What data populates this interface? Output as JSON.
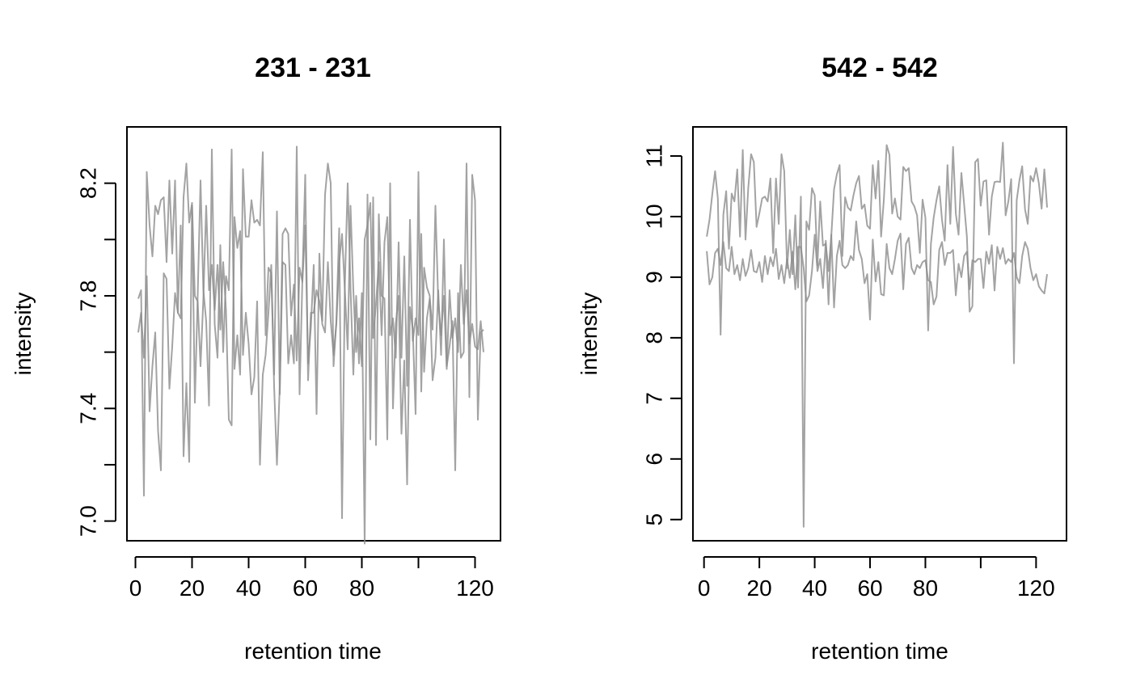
{
  "chart_data": [
    {
      "type": "line",
      "title": "231 - 231",
      "xlabel": "retention time",
      "ylabel": "intensity",
      "xlim": [
        -3,
        129
      ],
      "ylim": [
        6.93,
        8.4
      ],
      "xticks": [
        0,
        20,
        40,
        60,
        80,
        100,
        120
      ],
      "xtick_labels": [
        "0",
        "20",
        "40",
        "60",
        "80",
        "",
        "120"
      ],
      "yticks": [
        7.0,
        7.2,
        7.4,
        7.6,
        7.8,
        8.0,
        8.2
      ],
      "ytick_labels": [
        "7.0",
        "",
        "7.4",
        "",
        "7.8",
        "",
        "8.2"
      ],
      "grid": false,
      "series": [
        {
          "x": [
            1,
            2,
            3,
            4,
            5,
            6,
            7,
            8,
            9,
            10,
            11,
            12,
            13,
            14,
            15,
            16,
            17,
            18,
            19,
            20,
            21,
            22,
            23,
            24,
            25,
            26,
            27,
            28,
            29,
            30,
            31,
            32,
            33,
            34,
            35,
            36,
            37,
            38,
            39,
            40,
            41,
            42,
            43,
            44,
            45,
            46,
            47,
            48,
            49,
            50,
            51,
            52,
            53,
            54,
            55,
            56,
            57,
            58,
            59,
            60,
            61,
            62,
            63,
            64,
            65,
            66,
            67,
            68,
            69,
            70,
            71,
            72,
            73,
            74,
            75,
            76,
            77,
            78,
            79,
            80,
            81,
            82,
            83,
            84,
            85,
            86,
            87,
            88,
            89,
            90,
            91,
            92,
            93,
            94,
            95,
            96,
            97,
            98,
            99,
            100,
            101,
            102,
            103,
            104,
            105,
            106,
            107,
            108,
            109,
            110,
            111,
            112,
            113,
            114,
            115,
            116,
            117,
            118,
            119,
            120,
            121,
            122,
            123
          ],
          "y": [
            7.79,
            7.82,
            7.09,
            8.24,
            8.05,
            7.94,
            8.12,
            8.09,
            8.14,
            8.15,
            7.92,
            8.21,
            7.95,
            8.21,
            7.74,
            8.05,
            7.23,
            7.49,
            7.21,
            8.12,
            7.42,
            7.8,
            8.21,
            7.82,
            7.71,
            7.41,
            8.32,
            7.7,
            7.58,
            7.98,
            7.6,
            7.87,
            7.82,
            8.32,
            7.54,
            7.66,
            7.52,
            8.25,
            8.01,
            8.01,
            8.14,
            8.06,
            8.07,
            8.05,
            8.31,
            7.66,
            7.9,
            7.88,
            7.52,
            8.1,
            7.45,
            7.92,
            7.91,
            7.56,
            7.66,
            7.56,
            8.33,
            7.45,
            7.86,
            8.23,
            7.5,
            7.74,
            7.74,
            7.82,
            7.78,
            7.71,
            8.16,
            8.27,
            8.2,
            7.55,
            7.71,
            8.04,
            7.01,
            7.84,
            8.2,
            7.83,
            7.52,
            7.8,
            7.56,
            7.81,
            6.92,
            8.16,
            7.29,
            8.15,
            7.27,
            8.09,
            7.8,
            7.79,
            7.29,
            8.2,
            7.4,
            7.7,
            7.8,
            7.31,
            7.57,
            7.13,
            7.76,
            7.68,
            7.38,
            8.24,
            7.46,
            7.9,
            7.83,
            7.8,
            7.5,
            7.58,
            7.82,
            7.59,
            8.0,
            7.55,
            7.62,
            7.71,
            7.18,
            7.81,
            7.58,
            7.6,
            8.27,
            7.44,
            8.23,
            8.14,
            7.36,
            7.67,
            7.68
          ]
        },
        {
          "x": [
            1,
            2,
            3,
            4,
            5,
            6,
            7,
            8,
            9,
            10,
            11,
            12,
            13,
            14,
            15,
            16,
            17,
            18,
            19,
            20,
            21,
            22,
            23,
            24,
            25,
            26,
            27,
            28,
            29,
            30,
            31,
            32,
            33,
            34,
            35,
            36,
            37,
            38,
            39,
            40,
            41,
            42,
            43,
            44,
            45,
            46,
            47,
            48,
            49,
            50,
            51,
            52,
            53,
            54,
            55,
            56,
            57,
            58,
            59,
            60,
            61,
            62,
            63,
            64,
            65,
            66,
            67,
            68,
            69,
            70,
            71,
            72,
            73,
            74,
            75,
            76,
            77,
            78,
            79,
            80,
            81,
            82,
            83,
            84,
            85,
            86,
            87,
            88,
            89,
            90,
            91,
            92,
            93,
            94,
            95,
            96,
            97,
            98,
            99,
            100,
            101,
            102,
            103,
            104,
            105,
            106,
            107,
            108,
            109,
            110,
            111,
            112,
            113,
            114,
            115,
            116,
            117,
            118,
            119,
            120,
            121,
            122,
            123
          ],
          "y": [
            7.67,
            7.74,
            7.58,
            7.87,
            7.39,
            7.55,
            7.67,
            7.32,
            7.18,
            7.88,
            7.86,
            7.47,
            7.62,
            7.81,
            7.74,
            7.72,
            8.15,
            8.27,
            8.06,
            8.13,
            7.8,
            7.78,
            7.55,
            7.79,
            8.12,
            7.82,
            7.91,
            7.75,
            7.91,
            7.68,
            7.92,
            7.75,
            7.36,
            7.34,
            8.08,
            7.97,
            8.03,
            7.59,
            7.74,
            7.63,
            7.45,
            7.51,
            7.78,
            7.2,
            7.52,
            7.59,
            7.74,
            7.91,
            7.48,
            7.2,
            7.48,
            8.02,
            8.04,
            8.02,
            7.73,
            7.84,
            7.57,
            7.9,
            7.85,
            8.05,
            7.56,
            7.69,
            7.91,
            7.38,
            7.95,
            7.7,
            7.67,
            7.92,
            7.71,
            7.59,
            7.7,
            7.92,
            8.02,
            7.82,
            7.61,
            8.12,
            7.82,
            7.6,
            7.72,
            7.55,
            8.0,
            8.05,
            8.13,
            7.65,
            7.77,
            7.92,
            7.66,
            7.99,
            8.08,
            7.66,
            7.72,
            7.58,
            7.99,
            7.58,
            7.94,
            7.48,
            8.07,
            7.64,
            7.72,
            7.66,
            8.02,
            7.53,
            7.72,
            7.79,
            7.68,
            8.12,
            7.78,
            7.66,
            7.8,
            7.54,
            7.82,
            7.65,
            7.72,
            7.6,
            7.91,
            7.7,
            7.82,
            7.63,
            7.7,
            7.62,
            7.61,
            7.71,
            7.6
          ]
        }
      ]
    },
    {
      "type": "line",
      "title": "542 - 542",
      "xlabel": "retention time",
      "ylabel": "intensity",
      "xlim": [
        -4,
        131
      ],
      "ylim": [
        4.65,
        11.48
      ],
      "xticks": [
        0,
        20,
        40,
        60,
        80,
        100,
        120
      ],
      "xtick_labels": [
        "0",
        "20",
        "40",
        "60",
        "80",
        "",
        "120"
      ],
      "yticks": [
        5,
        6,
        7,
        8,
        9,
        10,
        11
      ],
      "ytick_labels": [
        "5",
        "6",
        "7",
        "8",
        "9",
        "10",
        "11"
      ],
      "grid": false,
      "series": [
        {
          "x": [
            1,
            2,
            3,
            4,
            5,
            6,
            7,
            8,
            9,
            10,
            11,
            12,
            13,
            14,
            15,
            16,
            17,
            18,
            19,
            20,
            21,
            22,
            23,
            24,
            25,
            26,
            27,
            28,
            29,
            30,
            31,
            32,
            33,
            34,
            35,
            36,
            37,
            38,
            39,
            40,
            41,
            42,
            43,
            44,
            45,
            46,
            47,
            48,
            49,
            50,
            51,
            52,
            53,
            54,
            55,
            56,
            57,
            58,
            59,
            60,
            61,
            62,
            63,
            64,
            65,
            66,
            67,
            68,
            69,
            70,
            71,
            72,
            73,
            74,
            75,
            76,
            77,
            78,
            79,
            80,
            81,
            82,
            83,
            84,
            85,
            86,
            87,
            88,
            89,
            90,
            91,
            92,
            93,
            94,
            95,
            96,
            97,
            98,
            99,
            100,
            101,
            102,
            103,
            104,
            105,
            106,
            107,
            108,
            109,
            110,
            111,
            112,
            113,
            114,
            115,
            116,
            117,
            118,
            119,
            120,
            121,
            122,
            123,
            124
          ],
          "y": [
            9.67,
            9.95,
            10.38,
            10.75,
            10.3,
            8.05,
            10.03,
            10.42,
            9.47,
            10.38,
            10.25,
            10.78,
            9.67,
            11.1,
            9.62,
            10.47,
            11.03,
            10.9,
            9.83,
            10.05,
            10.3,
            10.33,
            10.25,
            10.63,
            9.4,
            10.63,
            9.88,
            11.03,
            10.75,
            9.15,
            9.78,
            9.05,
            10.02,
            8.83,
            10.33,
            4.88,
            9.92,
            9.78,
            10.47,
            10.35,
            9.2,
            10.25,
            9.52,
            9.55,
            9.1,
            9.68,
            10.45,
            10.7,
            10.85,
            9.35,
            10.32,
            10.15,
            10.1,
            10.35,
            10.55,
            10.67,
            10.13,
            10.2,
            9.85,
            9.8,
            10.85,
            10.3,
            10.92,
            9.67,
            10.28,
            11.18,
            11.02,
            10.05,
            10.3,
            10.0,
            9.95,
            10.82,
            10.75,
            10.8,
            10.25,
            10.17,
            10.02,
            9.4,
            10.28,
            9.98,
            8.12,
            9.55,
            9.98,
            10.27,
            10.5,
            9.95,
            9.6,
            10.85,
            9.88,
            11.15,
            10.05,
            9.7,
            10.72,
            10.2,
            9.67,
            8.43,
            8.52,
            10.9,
            10.95,
            10.18,
            10.58,
            10.6,
            9.7,
            10.33,
            10.57,
            10.58,
            10.57,
            11.22,
            10.02,
            10.25,
            10.62,
            7.58,
            10.27,
            10.6,
            10.83,
            10.12,
            9.88,
            10.67,
            10.58,
            10.8,
            10.55,
            10.13,
            10.78,
            10.15
          ]
        },
        {
          "x": [
            1,
            2,
            3,
            4,
            5,
            6,
            7,
            8,
            9,
            10,
            11,
            12,
            13,
            14,
            15,
            16,
            17,
            18,
            19,
            20,
            21,
            22,
            23,
            24,
            25,
            26,
            27,
            28,
            29,
            30,
            31,
            32,
            33,
            34,
            35,
            36,
            37,
            38,
            39,
            40,
            41,
            42,
            43,
            44,
            45,
            46,
            47,
            48,
            49,
            50,
            51,
            52,
            53,
            54,
            55,
            56,
            57,
            58,
            59,
            60,
            61,
            62,
            63,
            64,
            65,
            66,
            67,
            68,
            69,
            70,
            71,
            72,
            73,
            74,
            75,
            76,
            77,
            78,
            79,
            80,
            81,
            82,
            83,
            84,
            85,
            86,
            87,
            88,
            89,
            90,
            91,
            92,
            93,
            94,
            95,
            96,
            97,
            98,
            99,
            100,
            101,
            102,
            103,
            104,
            105,
            106,
            107,
            108,
            109,
            110,
            111,
            112,
            113,
            114,
            115,
            116,
            117,
            118,
            119,
            120,
            121,
            122,
            123,
            124
          ],
          "y": [
            9.43,
            8.88,
            9.0,
            9.4,
            9.47,
            9.2,
            9.58,
            9.15,
            9.1,
            9.5,
            9.05,
            9.2,
            8.95,
            9.3,
            9.02,
            9.15,
            9.45,
            9.1,
            9.08,
            9.25,
            8.92,
            9.35,
            9.05,
            9.33,
            9.18,
            9.47,
            8.97,
            9.2,
            8.9,
            9.3,
            8.99,
            9.42,
            8.8,
            9.5,
            9.5,
            9.15,
            8.6,
            8.7,
            9.1,
            9.7,
            9.1,
            9.3,
            8.82,
            9.6,
            8.55,
            9.7,
            8.5,
            9.35,
            9.6,
            9.2,
            9.15,
            9.2,
            9.35,
            9.28,
            9.92,
            9.45,
            9.3,
            8.9,
            9.05,
            8.3,
            9.62,
            8.93,
            9.25,
            8.72,
            8.7,
            9.55,
            9.15,
            9.05,
            9.3,
            9.6,
            9.72,
            8.8,
            9.55,
            9.65,
            9.15,
            9.05,
            9.2,
            9.15,
            9.25,
            9.28,
            8.95,
            8.92,
            8.55,
            8.68,
            9.45,
            9.58,
            9.2,
            9.4,
            9.4,
            9.45,
            8.7,
            9.22,
            9.0,
            9.35,
            9.42,
            8.8,
            9.28,
            9.25,
            9.3,
            9.3,
            8.82,
            9.42,
            9.22,
            9.53,
            8.78,
            9.5,
            9.3,
            9.48,
            9.22,
            9.3,
            9.25,
            9.4,
            9.0,
            8.9,
            9.35,
            9.58,
            9.47,
            9.15,
            8.95,
            9.05,
            8.85,
            8.78,
            8.73,
            9.05
          ]
        }
      ]
    }
  ]
}
